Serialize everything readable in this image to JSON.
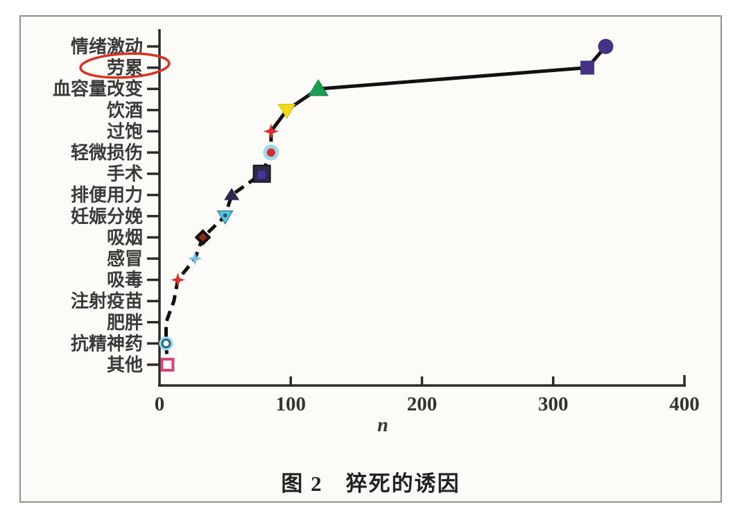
{
  "caption": "图 2　猝死的诱因",
  "chart_data": {
    "type": "scatter",
    "title": "图 2 猝死的诱因",
    "xlabel": "n",
    "ylabel": "",
    "xlim": [
      0,
      400
    ],
    "xticks": [
      0,
      100,
      200,
      300,
      400
    ],
    "grid": false,
    "legend": "none",
    "line_style": "thick black connecting line, dashed on lower segment, solid on upper segment",
    "annotation": "hand-drawn red ellipse circling the 劳累 axis label",
    "categories": [
      "情绪激动",
      "劳累",
      "血容量改变",
      "饮酒",
      "过饱",
      "轻微损伤",
      "手术",
      "排便用力",
      "妊娠分娩",
      "吸烟",
      "感冒",
      "吸毒",
      "注射疫苗",
      "肥胖",
      "抗精神药",
      "其他"
    ],
    "values": [
      340,
      326,
      121,
      97,
      85,
      85,
      78,
      55,
      50,
      33,
      27,
      14,
      11,
      5,
      5,
      6
    ],
    "points": [
      {
        "category": "情绪激动",
        "n": 340,
        "marker": "circle",
        "color": "#453287",
        "color2": "",
        "size": 11
      },
      {
        "category": "劳累",
        "n": 326,
        "marker": "square",
        "color": "#453287",
        "color2": "",
        "size": 11,
        "circled": true
      },
      {
        "category": "血容量改变",
        "n": 121,
        "marker": "triangle-up",
        "color": "#1a9e52",
        "color2": "#0c7a3a",
        "size": 13
      },
      {
        "category": "饮酒",
        "n": 97,
        "marker": "triangle-down",
        "color": "#f1d91c",
        "color2": "#d4bd0a",
        "size": 12
      },
      {
        "category": "过饱",
        "n": 85,
        "marker": "star4",
        "color": "#dc2f27",
        "color2": "",
        "size": 11
      },
      {
        "category": "轻微损伤",
        "n": 85,
        "marker": "circle-dot",
        "color": "#a2d7f0",
        "color2": "#d2302b",
        "size": 11
      },
      {
        "category": "手术",
        "n": 78,
        "marker": "square-inner",
        "color": "#322a4d",
        "color2": "#4a34a2",
        "size": 12
      },
      {
        "category": "排便用力",
        "n": 55,
        "marker": "triangle-up",
        "color": "#2c2a52",
        "color2": "#1d1b3a",
        "size": 9
      },
      {
        "category": "妊娠分娩",
        "n": 50,
        "marker": "triangle-down-dot",
        "color": "#56c6e6",
        "color2": "#1d5f78",
        "size": 11
      },
      {
        "category": "吸烟",
        "n": 33,
        "marker": "diamond-dot",
        "color": "#141414",
        "color2": "#9e2420",
        "size": 12
      },
      {
        "category": "感冒",
        "n": 27,
        "marker": "star4",
        "color": "#6fc2e9",
        "color2": "",
        "size": 10
      },
      {
        "category": "吸毒",
        "n": 14,
        "marker": "star4",
        "color": "#d83227",
        "color2": "",
        "size": 10
      },
      {
        "category": "注射疫苗",
        "n": 11,
        "marker": "none",
        "color": "#111111",
        "color2": "",
        "size": 0
      },
      {
        "category": "肥胖",
        "n": 5,
        "marker": "none",
        "color": "#111111",
        "color2": "",
        "size": 0
      },
      {
        "category": "抗精神药",
        "n": 5,
        "marker": "donut",
        "color": "#96d6ec",
        "color2": "#256b76",
        "size": 10
      },
      {
        "category": "其他",
        "n": 6,
        "marker": "open-square",
        "color": "#d74579",
        "color2": "",
        "size": 8
      }
    ]
  },
  "colors": {
    "axis": "#2b2b2b",
    "line": "#111111",
    "tick_label": "#333333",
    "category_label": "#3a3a3a",
    "annotation_red": "#d9311f",
    "border_gray": "#8f8f8f"
  }
}
